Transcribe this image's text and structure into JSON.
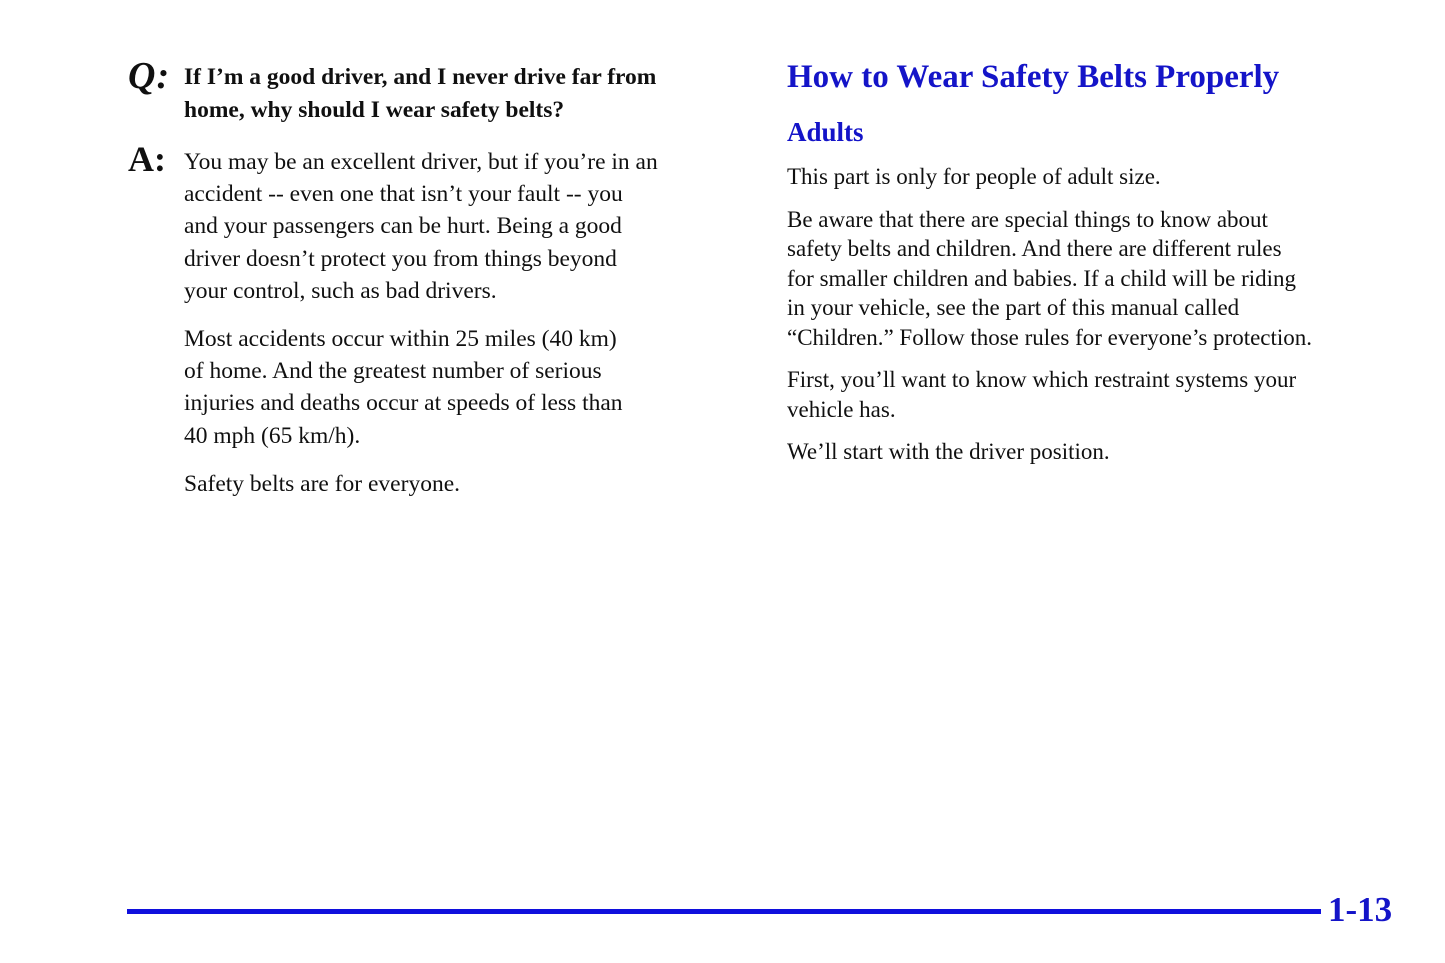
{
  "page": {
    "footer": {
      "page_number": "1-13"
    },
    "colors": {
      "accent_blue": "#1414c8",
      "rule_blue": "#1010dd",
      "text_color": "#101010"
    }
  },
  "left_column": {
    "q_marker": "Q:",
    "question_lines": [
      "If I’m a good driver, and I never drive far from",
      "home, why should I wear safety belts?"
    ],
    "a_marker": "A:",
    "answer_para1_lines": [
      "You may be an excellent driver, but if you’re in an",
      "accident -- even one that isn’t your fault -- you",
      "and your passengers can be hurt. Being a good",
      "driver doesn’t protect you from things beyond",
      "your control, such as bad drivers."
    ],
    "answer_para2_lines": [
      "Most accidents occur within 25 miles (40 km)",
      "of home. And the greatest number of serious",
      "injuries and deaths occur at speeds of less than",
      "40 mph (65 km/h)."
    ],
    "answer_para3": "Safety belts are for everyone."
  },
  "right_column": {
    "heading": "How to Wear Safety Belts Properly",
    "subheading": "Adults",
    "para1": "This part is only for people of adult size.",
    "para2_lines": [
      "Be aware that there are special things to know about",
      "safety belts and children. And there are different rules",
      "for smaller children and babies. If a child will be riding",
      "in your vehicle, see the part of this manual called",
      "“Children.” Follow those rules for everyone’s protection."
    ],
    "para3_lines": [
      "First, you’ll want to know which restraint systems your",
      "vehicle has."
    ],
    "para4": "We’ll start with the driver position."
  }
}
